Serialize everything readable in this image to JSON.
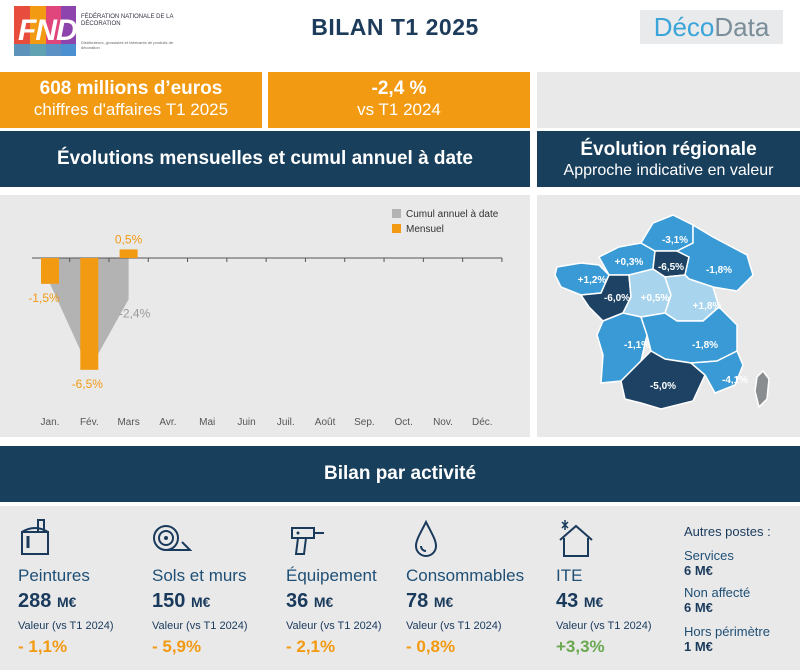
{
  "header": {
    "title": "BILAN T1 2025",
    "fnd_logo_letters": "FND",
    "fnd_logo_text": "Fédération nationale de la décoration",
    "fnd_logo_subtext": "Distributeurs, grossistes et fabricants de produits de décoration",
    "decodata_part1": "Déco",
    "decodata_part2": "Data"
  },
  "kpis": [
    {
      "value": "608 millions d’euros",
      "label": "chiffres d'affaires T1 2025"
    },
    {
      "value": "-2,4 %",
      "label": "vs T1 2024"
    }
  ],
  "sections": {
    "monthly": "Évolutions mensuelles et cumul annuel à date",
    "regional_title": "Évolution régionale",
    "regional_subtitle": "Approche indicative en valeur",
    "activity": "Bilan par activité"
  },
  "colors": {
    "orange": "#f29a12",
    "navy": "#183f5c",
    "grey_bar": "#b3b3b3",
    "green": "#6aa84f",
    "region_dark": "#1d4263",
    "region_mid": "#3a9ad6",
    "region_light": "#a9d4ee"
  },
  "chart_data": {
    "type": "bar",
    "categories": [
      "Jan.",
      "Fév.",
      "Mars",
      "Avr.",
      "Mai",
      "Juin",
      "Juil.",
      "Août",
      "Sep.",
      "Oct.",
      "Nov.",
      "Déc."
    ],
    "series": [
      {
        "name": "Cumul annuel à date",
        "values": [
          -1.5,
          -6.5,
          -2.4,
          null,
          null,
          null,
          null,
          null,
          null,
          null,
          null,
          null
        ],
        "color": "#b3b3b3",
        "style": "area"
      },
      {
        "name": "Mensuel",
        "values": [
          -1.5,
          -6.5,
          0.5,
          null,
          null,
          null,
          null,
          null,
          null,
          null,
          null,
          null
        ],
        "color": "#f29a12",
        "style": "bar"
      }
    ],
    "data_labels": [
      {
        "month": "Jan.",
        "text": "-1,5%",
        "color": "#f29a12"
      },
      {
        "month": "Fév.",
        "text": "-6,5%",
        "color": "#f29a12"
      },
      {
        "month": "Mars",
        "text": "0,5%",
        "color": "#f29a12"
      },
      {
        "month": "Mars",
        "text": "-2,4%",
        "color": "#9a9a9a"
      }
    ],
    "ylim": [
      -7.5,
      1.5
    ],
    "legend_position": "top-right",
    "grid": false
  },
  "regions": [
    {
      "id": "normandie",
      "value": "+0,3%",
      "tone": "region_mid"
    },
    {
      "id": "hauts-de-france",
      "value": "-3,1%",
      "tone": "region_mid"
    },
    {
      "id": "ile-de-france",
      "value": "-6,5%",
      "tone": "region_dark"
    },
    {
      "id": "grand-est",
      "value": "-1,8%",
      "tone": "region_mid"
    },
    {
      "id": "bretagne",
      "value": "+1,2%",
      "tone": "region_mid"
    },
    {
      "id": "pays-de-la-loire",
      "value": "-6,0%",
      "tone": "region_dark"
    },
    {
      "id": "centre",
      "value": "+0,5%",
      "tone": "region_light"
    },
    {
      "id": "bourgogne",
      "value": "+1,8%",
      "tone": "region_light"
    },
    {
      "id": "nouvelle-aquitaine",
      "value": "-1,1%",
      "tone": "region_mid"
    },
    {
      "id": "auvergne-rhone-alpes",
      "value": "-1,8%",
      "tone": "region_mid"
    },
    {
      "id": "occitanie",
      "value": "-5,0%",
      "tone": "region_dark"
    },
    {
      "id": "paca",
      "value": "-4,1%",
      "tone": "region_mid"
    },
    {
      "id": "corse",
      "value": "",
      "tone": "grey"
    }
  ],
  "activities": [
    {
      "icon": "paint-bucket-icon",
      "name": "Peintures",
      "value": "288",
      "unit": "M€",
      "label": "Valeur (vs T1 2024)",
      "change": "- 1,1%",
      "color": "#f29a12"
    },
    {
      "icon": "roll-icon",
      "name": "Sols et murs",
      "value": "150",
      "unit": "M€",
      "label": "Valeur (vs T1 2024)",
      "change": "- 5,9%",
      "color": "#f29a12"
    },
    {
      "icon": "drill-icon",
      "name": "Équipement",
      "value": "36",
      "unit": "M€",
      "label": "Valeur (vs T1 2024)",
      "change": "- 2,1%",
      "color": "#f29a12"
    },
    {
      "icon": "drop-icon",
      "name": "Consommables",
      "value": "78",
      "unit": "M€",
      "label": "Valeur (vs T1 2024)",
      "change": "- 0,8%",
      "color": "#f29a12"
    },
    {
      "icon": "house-snowflake-icon",
      "name": "ITE",
      "value": "43",
      "unit": "M€",
      "label": "Valeur (vs T1 2024)",
      "change": "+3,3%",
      "color": "#6aa84f"
    }
  ],
  "others": {
    "title": "Autres postes :",
    "items": [
      {
        "name": "Services",
        "value": "6 M€"
      },
      {
        "name": "Non affecté",
        "value": "6 M€"
      },
      {
        "name": "Hors périmètre",
        "value": "1 M€"
      }
    ]
  }
}
